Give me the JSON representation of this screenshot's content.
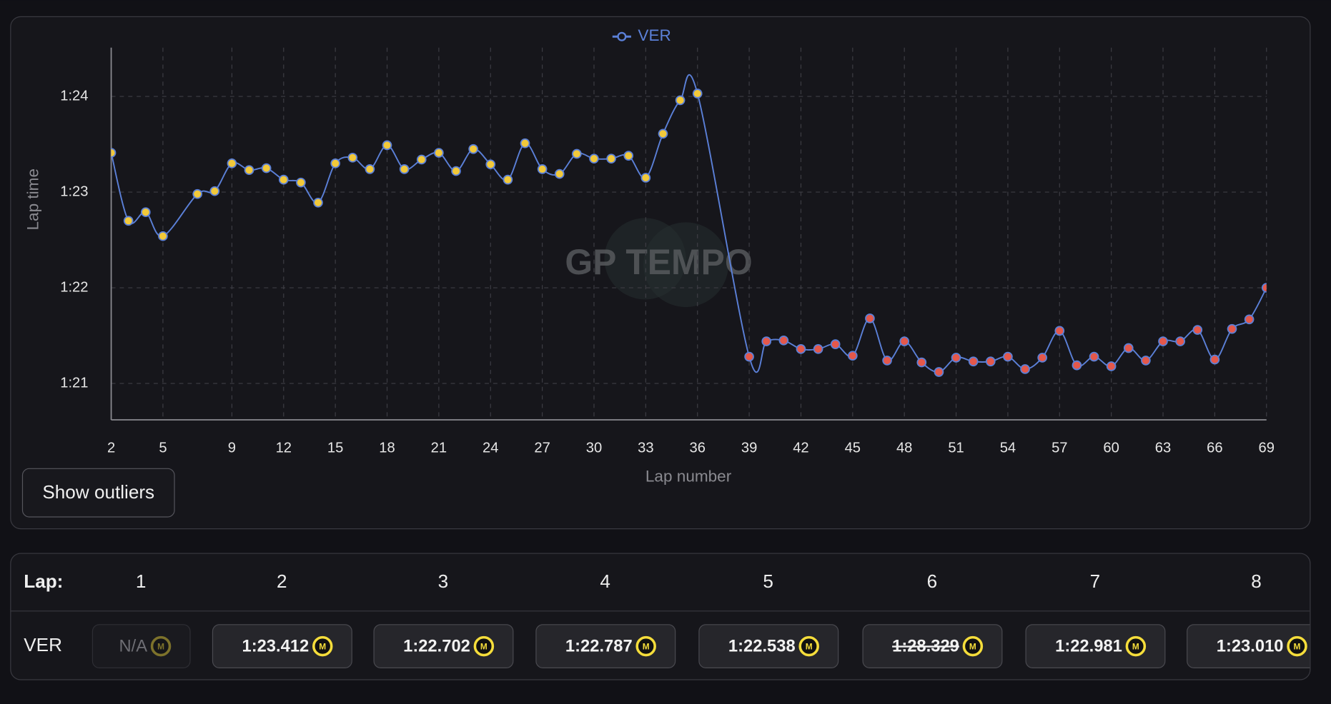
{
  "chart_data": {
    "type": "line",
    "legend": "top-center",
    "x_label": "Lap number",
    "y_label": "Lap time",
    "watermark": "GP TEMPO",
    "grid": true,
    "xlim": [
      2,
      69
    ],
    "xticks": [
      2,
      5,
      9,
      12,
      15,
      18,
      21,
      24,
      27,
      30,
      33,
      36,
      39,
      42,
      45,
      48,
      51,
      54,
      57,
      60,
      63,
      66,
      69
    ],
    "ylim": [
      80.62,
      84.51
    ],
    "yticks": [
      {
        "value": 81,
        "label": "1:21"
      },
      {
        "value": 82,
        "label": "1:22"
      },
      {
        "value": 83,
        "label": "1:23"
      },
      {
        "value": 84,
        "label": "1:24"
      }
    ],
    "x": [
      2,
      3,
      4,
      5,
      7,
      8,
      9,
      10,
      11,
      12,
      13,
      14,
      15,
      16,
      17,
      18,
      19,
      20,
      21,
      22,
      23,
      24,
      25,
      26,
      27,
      28,
      29,
      30,
      31,
      32,
      33,
      34,
      35,
      36,
      39,
      40,
      41,
      42,
      43,
      44,
      45,
      46,
      47,
      48,
      49,
      50,
      51,
      52,
      53,
      54,
      55,
      56,
      57,
      58,
      59,
      60,
      61,
      62,
      63,
      64,
      65,
      66,
      67,
      68,
      69
    ],
    "series": [
      {
        "name": "VER",
        "color": "#5b80d8",
        "values": [
          83.41,
          82.7,
          82.79,
          82.54,
          82.98,
          83.01,
          83.3,
          83.23,
          83.25,
          83.13,
          83.1,
          82.89,
          83.3,
          83.36,
          83.24,
          83.49,
          83.24,
          83.34,
          83.41,
          83.22,
          83.45,
          83.29,
          83.13,
          83.51,
          83.24,
          83.19,
          83.4,
          83.35,
          83.35,
          83.38,
          83.15,
          83.61,
          83.96,
          84.03,
          81.28,
          81.44,
          81.45,
          81.36,
          81.36,
          81.41,
          81.29,
          81.68,
          81.24,
          81.44,
          81.22,
          81.12,
          81.27,
          81.23,
          81.23,
          81.28,
          81.15,
          81.27,
          81.55,
          81.19,
          81.28,
          81.18,
          81.37,
          81.24,
          81.44,
          81.44,
          81.56,
          81.25,
          81.57,
          81.67,
          82.0
        ],
        "marker_colors": [
          "#f2c93a",
          "#f2c93a",
          "#f2c93a",
          "#f2c93a",
          "#f2c93a",
          "#f2c93a",
          "#f2c93a",
          "#f2c93a",
          "#f2c93a",
          "#f2c93a",
          "#f2c93a",
          "#f2c93a",
          "#f2c93a",
          "#f2c93a",
          "#f2c93a",
          "#f2c93a",
          "#f2c93a",
          "#f2c93a",
          "#f2c93a",
          "#f2c93a",
          "#f2c93a",
          "#f2c93a",
          "#f2c93a",
          "#f2c93a",
          "#f2c93a",
          "#f2c93a",
          "#f2c93a",
          "#f2c93a",
          "#f2c93a",
          "#f2c93a",
          "#f2c93a",
          "#f2c93a",
          "#f2c93a",
          "#f2c93a",
          "#e4584b",
          "#e4584b",
          "#e4584b",
          "#e4584b",
          "#e4584b",
          "#e4584b",
          "#e4584b",
          "#e4584b",
          "#e4584b",
          "#e4584b",
          "#e4584b",
          "#e4584b",
          "#e4584b",
          "#e4584b",
          "#e4584b",
          "#e4584b",
          "#e4584b",
          "#e4584b",
          "#e4584b",
          "#e4584b",
          "#e4584b",
          "#e4584b",
          "#e4584b",
          "#e4584b",
          "#e4584b",
          "#e4584b",
          "#e4584b",
          "#e4584b",
          "#e4584b",
          "#e4584b",
          "#e4584b"
        ]
      }
    ]
  },
  "button": {
    "label": "Show outliers"
  },
  "table": {
    "header_label": "Lap:",
    "laps": [
      1,
      2,
      3,
      4,
      5,
      6,
      7,
      8
    ],
    "rows": [
      {
        "driver": "VER",
        "cells": [
          {
            "text": "N/A",
            "state": "na",
            "tyre": "M"
          },
          {
            "text": "1:23.412",
            "state": "normal",
            "tyre": "M"
          },
          {
            "text": "1:22.702",
            "state": "normal",
            "tyre": "M"
          },
          {
            "text": "1:22.787",
            "state": "normal",
            "tyre": "M"
          },
          {
            "text": "1:22.538",
            "state": "normal",
            "tyre": "M"
          },
          {
            "text": "1:28.329",
            "state": "outlier",
            "tyre": "M"
          },
          {
            "text": "1:22.981",
            "state": "normal",
            "tyre": "M"
          },
          {
            "text": "1:23.010",
            "state": "normal",
            "tyre": "M"
          }
        ]
      }
    ]
  }
}
